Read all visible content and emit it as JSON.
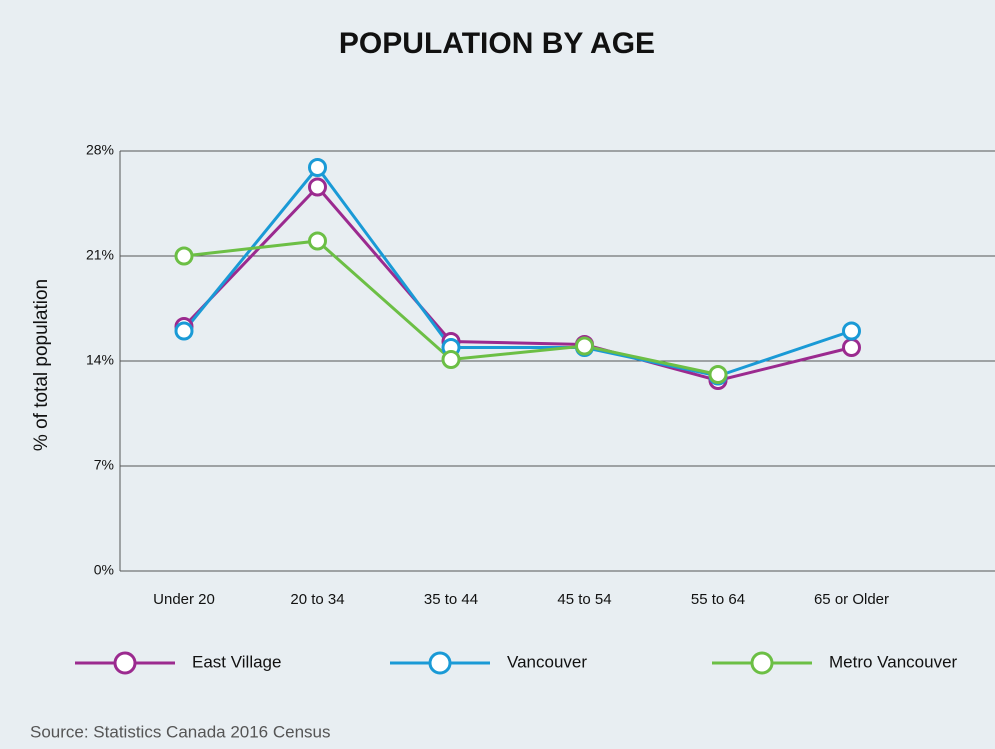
{
  "chart_data": {
    "type": "line",
    "title": "POPULATION BY AGE",
    "y_label": "% of total population",
    "source": "Source: Statistics Canada 2016 Census",
    "categories": [
      "Under 20",
      "20 to 34",
      "35 to 44",
      "45 to 54",
      "55 to 64",
      "65 or Older"
    ],
    "series": [
      {
        "name": "East Village",
        "color": "#9b2a8f",
        "values": [
          16.3,
          25.6,
          15.3,
          15.1,
          12.7,
          14.9
        ]
      },
      {
        "name": "Vancouver",
        "color": "#1a9ad6",
        "values": [
          16.0,
          26.9,
          14.9,
          14.9,
          13.0,
          16.0
        ]
      },
      {
        "name": "Metro Vancouver",
        "color": "#6cbf45",
        "values": [
          21.0,
          22.0,
          14.1,
          15.0,
          13.1,
          null
        ]
      }
    ],
    "ylim": [
      0,
      28
    ],
    "yticks": [
      {
        "value": 0,
        "label": "0%"
      },
      {
        "value": 7,
        "label": "7%"
      },
      {
        "value": 14,
        "label": "14%"
      },
      {
        "value": 21,
        "label": "21%"
      },
      {
        "value": 28,
        "label": "28%"
      }
    ],
    "grid": true,
    "legend": "bottom"
  }
}
